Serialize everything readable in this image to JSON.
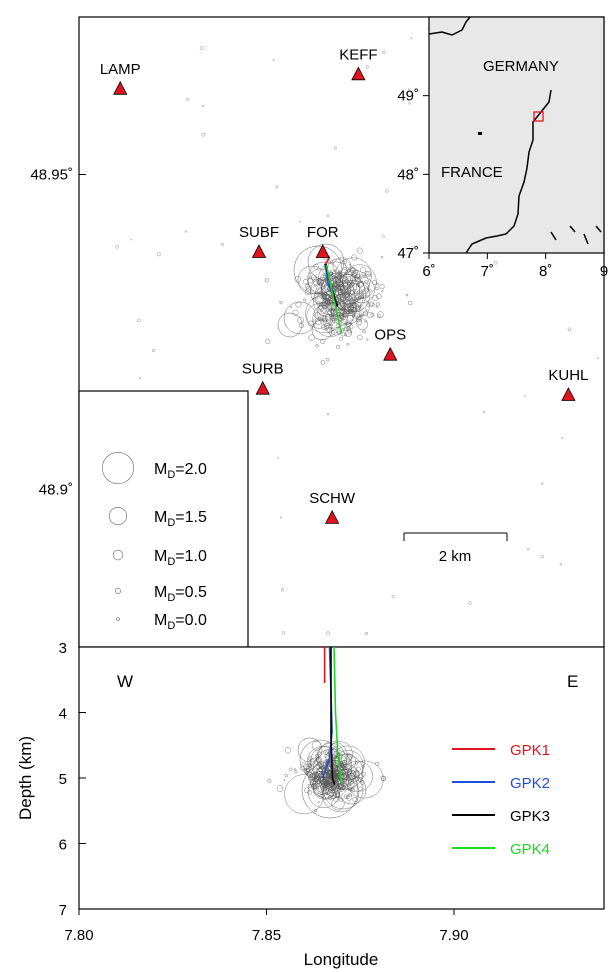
{
  "chart_data": [
    {
      "type": "scatter",
      "panel": "map",
      "ylabel": "",
      "xlabel": "",
      "x_range": [
        7.8,
        7.94
      ],
      "y_range": [
        48.875,
        48.975
      ],
      "y_ticks": [
        {
          "value": 48.95,
          "label": "48.95˚"
        },
        {
          "value": 48.9,
          "label": "48.9˚"
        }
      ],
      "stations": [
        {
          "name": "LAMP",
          "lon": 7.811,
          "lat": 48.9636
        },
        {
          "name": "KEFF",
          "lon": 7.8745,
          "lat": 48.9659
        },
        {
          "name": "SUBF",
          "lon": 7.848,
          "lat": 48.9377
        },
        {
          "name": "FOR",
          "lon": 7.865,
          "lat": 48.9377
        },
        {
          "name": "OPS",
          "lon": 7.883,
          "lat": 48.9214
        },
        {
          "name": "SURB",
          "lon": 7.849,
          "lat": 48.916
        },
        {
          "name": "KUHL",
          "lon": 7.9305,
          "lat": 48.915
        },
        {
          "name": "SCHW",
          "lon": 7.8675,
          "lat": 48.8955
        }
      ],
      "wells_map": [
        {
          "name": "GPK1",
          "color": "#e0141e",
          "points": [
            [
              7.8655,
              48.9356
            ],
            [
              7.8664,
              48.9364
            ],
            [
              7.8668,
              48.937
            ]
          ]
        },
        {
          "name": "GPK2",
          "color": "#1f4fd6",
          "points": [
            [
              7.8656,
              48.9358
            ],
            [
              7.8665,
              48.9325
            ],
            [
              7.868,
              48.9305
            ]
          ]
        },
        {
          "name": "GPK3",
          "color": "#000000",
          "points": [
            [
              7.8658,
              48.9358
            ],
            [
              7.8672,
              48.9322
            ],
            [
              7.869,
              48.929
            ]
          ]
        },
        {
          "name": "GPK4",
          "color": "#1ed81e",
          "points": [
            [
              7.866,
              48.9356
            ],
            [
              7.868,
              48.93
            ],
            [
              7.87,
              48.9248
            ]
          ]
        }
      ],
      "scale_bar": "2 km",
      "magnitude_legend": [
        {
          "prefix": "M",
          "sub": "D",
          "suffix": "=2.0",
          "value": 2.0
        },
        {
          "prefix": "M",
          "sub": "D",
          "suffix": "=1.5",
          "value": 1.5
        },
        {
          "prefix": "M",
          "sub": "D",
          "suffix": "=1.0",
          "value": 1.0
        },
        {
          "prefix": "M",
          "sub": "D",
          "suffix": "=0.5",
          "value": 0.5
        },
        {
          "prefix": "M",
          "sub": "D",
          "suffix": "=0.0",
          "value": 0.0
        }
      ]
    },
    {
      "type": "line",
      "panel": "depth-section",
      "xlabel": "Longitude",
      "ylabel": "Depth (km)",
      "x_range": [
        7.8,
        7.94
      ],
      "y_range": [
        3,
        7
      ],
      "x_ticks": [
        7.8,
        7.85,
        7.9
      ],
      "x_tick_labels": [
        "7.80",
        "7.85",
        "7.90"
      ],
      "y_ticks": [
        3,
        4,
        5,
        6,
        7
      ],
      "side_labels": {
        "west": "W",
        "east": "E"
      },
      "series": [
        {
          "name": "GPK1",
          "color": "#e0141e",
          "points": [
            [
              7.8655,
              3.0
            ],
            [
              7.8655,
              3.55
            ]
          ]
        },
        {
          "name": "GPK2",
          "color": "#1f4fd6",
          "points": [
            [
              7.8668,
              3.0
            ],
            [
              7.8672,
              3.7
            ],
            [
              7.8675,
              4.3
            ],
            [
              7.8668,
              4.7
            ],
            [
              7.865,
              5.0
            ]
          ]
        },
        {
          "name": "GPK3",
          "color": "#000000",
          "points": [
            [
              7.8672,
              3.0
            ],
            [
              7.8672,
              4.4
            ],
            [
              7.8676,
              5.0
            ],
            [
              7.8682,
              5.1
            ]
          ]
        },
        {
          "name": "GPK4",
          "color": "#1ed81e",
          "points": [
            [
              7.868,
              3.0
            ],
            [
              7.8684,
              4.0
            ],
            [
              7.869,
              4.6
            ],
            [
              7.87,
              5.1
            ]
          ]
        }
      ]
    },
    {
      "type": "map",
      "panel": "inset",
      "countries": [
        "GERMANY",
        "FRANCE"
      ],
      "lon_ticks": [
        6,
        7,
        8,
        9
      ],
      "lon_tick_labels": [
        "6˚",
        "7˚",
        "8˚",
        "9"
      ],
      "lat_ticks": [
        47,
        48,
        49
      ],
      "lat_tick_labels": [
        "47˚",
        "48˚",
        "49˚"
      ],
      "x_range": [
        6,
        9
      ],
      "y_range": [
        47,
        50
      ],
      "study_area_color": "#e0141e",
      "land_color": "#e8e8e8"
    }
  ]
}
